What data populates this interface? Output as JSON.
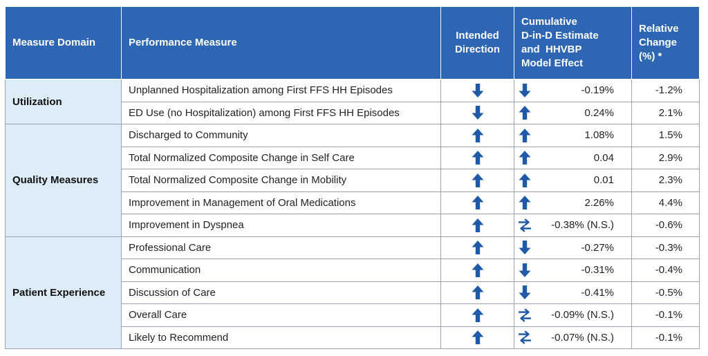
{
  "headers": {
    "domain": "Measure Domain",
    "measure": "Performance Measure",
    "direction": [
      "Intended",
      "Direction"
    ],
    "estimate": [
      "Cumulative",
      "D-in-D Estimate",
      "and  HHVBP",
      "Model Effect"
    ],
    "relative": [
      "Relative",
      "Change",
      "(%) *"
    ]
  },
  "colors": {
    "header_bg": "#2e66b4",
    "domain_bg": "#dcedf8",
    "arrow": "#1f5aa6"
  },
  "domains": [
    {
      "name": "Utilization",
      "rows": [
        {
          "measure": "Unplanned Hospitalization among First FFS HH Episodes",
          "intended": "arrow-down-icon",
          "effect": "arrow-down-icon",
          "estimate": "-0.19%",
          "relative": "-1.2%"
        },
        {
          "measure": "ED Use (no Hospitalization) among First FFS HH Episodes",
          "intended": "arrow-down-icon",
          "effect": "arrow-up-icon",
          "estimate": "0.24%",
          "relative": "2.1%"
        }
      ]
    },
    {
      "name": "Quality Measures",
      "rows": [
        {
          "measure": "Discharged to Community",
          "intended": "arrow-up-icon",
          "effect": "arrow-up-icon",
          "estimate": "1.08%",
          "relative": "1.5%"
        },
        {
          "measure": "Total Normalized Composite Change in Self Care",
          "intended": "arrow-up-icon",
          "effect": "arrow-up-icon",
          "estimate": "0.04",
          "relative": "2.9%"
        },
        {
          "measure": "Total Normalized Composite Change in Mobility",
          "intended": "arrow-up-icon",
          "effect": "arrow-up-icon",
          "estimate": "0.01",
          "relative": "2.3%"
        },
        {
          "measure": "Improvement in Management of Oral Medications",
          "intended": "arrow-up-icon",
          "effect": "arrow-up-icon",
          "estimate": "2.26%",
          "relative": "4.4%"
        },
        {
          "measure": "Improvement in Dyspnea",
          "intended": "arrow-up-icon",
          "effect": "swap-arrows-icon",
          "estimate": "-0.38% (N.S.)",
          "relative": "-0.6%"
        }
      ]
    },
    {
      "name": "Patient Experience",
      "rows": [
        {
          "measure": "Professional Care",
          "intended": "arrow-up-icon",
          "effect": "arrow-down-icon",
          "estimate": "-0.27%",
          "relative": "-0.3%"
        },
        {
          "measure": "Communication",
          "intended": "arrow-up-icon",
          "effect": "arrow-down-icon",
          "estimate": "-0.31%",
          "relative": "-0.4%"
        },
        {
          "measure": "Discussion of Care",
          "intended": "arrow-up-icon",
          "effect": "arrow-down-icon",
          "estimate": "-0.41%",
          "relative": "-0.5%"
        },
        {
          "measure": "Overall Care",
          "intended": "arrow-up-icon",
          "effect": "swap-arrows-icon",
          "estimate": "-0.09% (N.S.)",
          "relative": "-0.1%"
        },
        {
          "measure": "Likely to Recommend",
          "intended": "arrow-up-icon",
          "effect": "swap-arrows-icon",
          "estimate": "-0.07% (N.S.)",
          "relative": "-0.1%"
        }
      ]
    }
  ]
}
